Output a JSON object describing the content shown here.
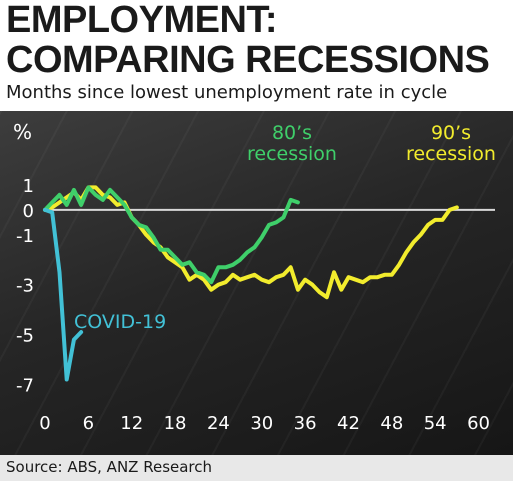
{
  "header": {
    "title_line1": "EMPLOYMENT:",
    "title_line2": "COMPARING RECESSIONS",
    "subtitle": "Months since lowest unemployment rate in cycle"
  },
  "footer": {
    "source": "Source: ABS, ANZ Research"
  },
  "colors": {
    "background": "#2a2a2a",
    "zero_line": "#d8d8d8",
    "tick_text": "#ffffff",
    "covid": "#42c1d6",
    "eighties": "#3fcf6a",
    "nineties": "#f2ec2d"
  },
  "chart_data": {
    "type": "line",
    "ylabel": "%",
    "xlim": [
      0,
      62
    ],
    "ylim": [
      -7.5,
      2.2
    ],
    "x_ticks": [
      "0",
      "6",
      "12",
      "18",
      "24",
      "30",
      "36",
      "42",
      "48",
      "54",
      "60"
    ],
    "y_ticks": [
      "1",
      "0",
      "-1",
      "-3",
      "-5",
      "-7"
    ],
    "grid": false,
    "reference_line_y": 0,
    "series": [
      {
        "name": "COVID-19",
        "label_lines": [
          "COVID-19"
        ],
        "color": "#42c1d6",
        "points": [
          [
            0,
            0
          ],
          [
            1,
            -0.1
          ],
          [
            2,
            -2.5
          ],
          [
            3,
            -6.8
          ],
          [
            4,
            -5.2
          ],
          [
            5,
            -4.9
          ]
        ]
      },
      {
        "name": "80's recession",
        "label_lines": [
          "80’s",
          "recession"
        ],
        "color": "#3fcf6a",
        "points": [
          [
            0,
            0
          ],
          [
            1,
            0.3
          ],
          [
            2,
            0.6
          ],
          [
            3,
            0.2
          ],
          [
            4,
            0.8
          ],
          [
            5,
            0.2
          ],
          [
            6,
            0.9
          ],
          [
            7,
            0.6
          ],
          [
            8,
            0.4
          ],
          [
            9,
            0.8
          ],
          [
            10,
            0.5
          ],
          [
            11,
            0.2
          ],
          [
            12,
            -0.3
          ],
          [
            13,
            -0.6
          ],
          [
            14,
            -0.7
          ],
          [
            15,
            -1.1
          ],
          [
            16,
            -1.6
          ],
          [
            17,
            -1.6
          ],
          [
            18,
            -1.9
          ],
          [
            19,
            -2.2
          ],
          [
            20,
            -2.1
          ],
          [
            21,
            -2.5
          ],
          [
            22,
            -2.6
          ],
          [
            23,
            -2.9
          ],
          [
            24,
            -2.3
          ],
          [
            25,
            -2.3
          ],
          [
            26,
            -2.2
          ],
          [
            27,
            -2.0
          ],
          [
            28,
            -1.7
          ],
          [
            29,
            -1.5
          ],
          [
            30,
            -1.1
          ],
          [
            31,
            -0.6
          ],
          [
            32,
            -0.5
          ],
          [
            33,
            -0.3
          ],
          [
            34,
            0.4
          ],
          [
            35,
            0.3
          ]
        ]
      },
      {
        "name": "90's recession",
        "label_lines": [
          "90’s",
          "recession"
        ],
        "color": "#f2ec2d",
        "points": [
          [
            0,
            0
          ],
          [
            1,
            0.1
          ],
          [
            2,
            0.3
          ],
          [
            3,
            0.5
          ],
          [
            4,
            0.7
          ],
          [
            5,
            0.4
          ],
          [
            6,
            0.9
          ],
          [
            7,
            0.9
          ],
          [
            8,
            0.6
          ],
          [
            9,
            0.5
          ],
          [
            10,
            0.2
          ],
          [
            11,
            0.3
          ],
          [
            12,
            -0.3
          ],
          [
            13,
            -0.6
          ],
          [
            14,
            -1.0
          ],
          [
            15,
            -1.3
          ],
          [
            16,
            -1.5
          ],
          [
            17,
            -1.9
          ],
          [
            18,
            -2.1
          ],
          [
            19,
            -2.3
          ],
          [
            20,
            -2.8
          ],
          [
            21,
            -2.6
          ],
          [
            22,
            -2.8
          ],
          [
            23,
            -3.2
          ],
          [
            24,
            -3.0
          ],
          [
            25,
            -2.9
          ],
          [
            26,
            -2.6
          ],
          [
            27,
            -2.8
          ],
          [
            28,
            -2.7
          ],
          [
            29,
            -2.6
          ],
          [
            30,
            -2.8
          ],
          [
            31,
            -2.9
          ],
          [
            32,
            -2.7
          ],
          [
            33,
            -2.6
          ],
          [
            34,
            -2.3
          ],
          [
            35,
            -3.2
          ],
          [
            36,
            -2.8
          ],
          [
            37,
            -3.0
          ],
          [
            38,
            -3.3
          ],
          [
            39,
            -3.5
          ],
          [
            40,
            -2.5
          ],
          [
            41,
            -3.2
          ],
          [
            42,
            -2.7
          ],
          [
            43,
            -2.8
          ],
          [
            44,
            -2.9
          ],
          [
            45,
            -2.7
          ],
          [
            46,
            -2.7
          ],
          [
            47,
            -2.6
          ],
          [
            48,
            -2.6
          ],
          [
            49,
            -2.2
          ],
          [
            50,
            -1.7
          ],
          [
            51,
            -1.3
          ],
          [
            52,
            -1.0
          ],
          [
            53,
            -0.6
          ],
          [
            54,
            -0.4
          ],
          [
            55,
            -0.4
          ],
          [
            56,
            0.0
          ],
          [
            57,
            0.1
          ]
        ]
      }
    ]
  }
}
